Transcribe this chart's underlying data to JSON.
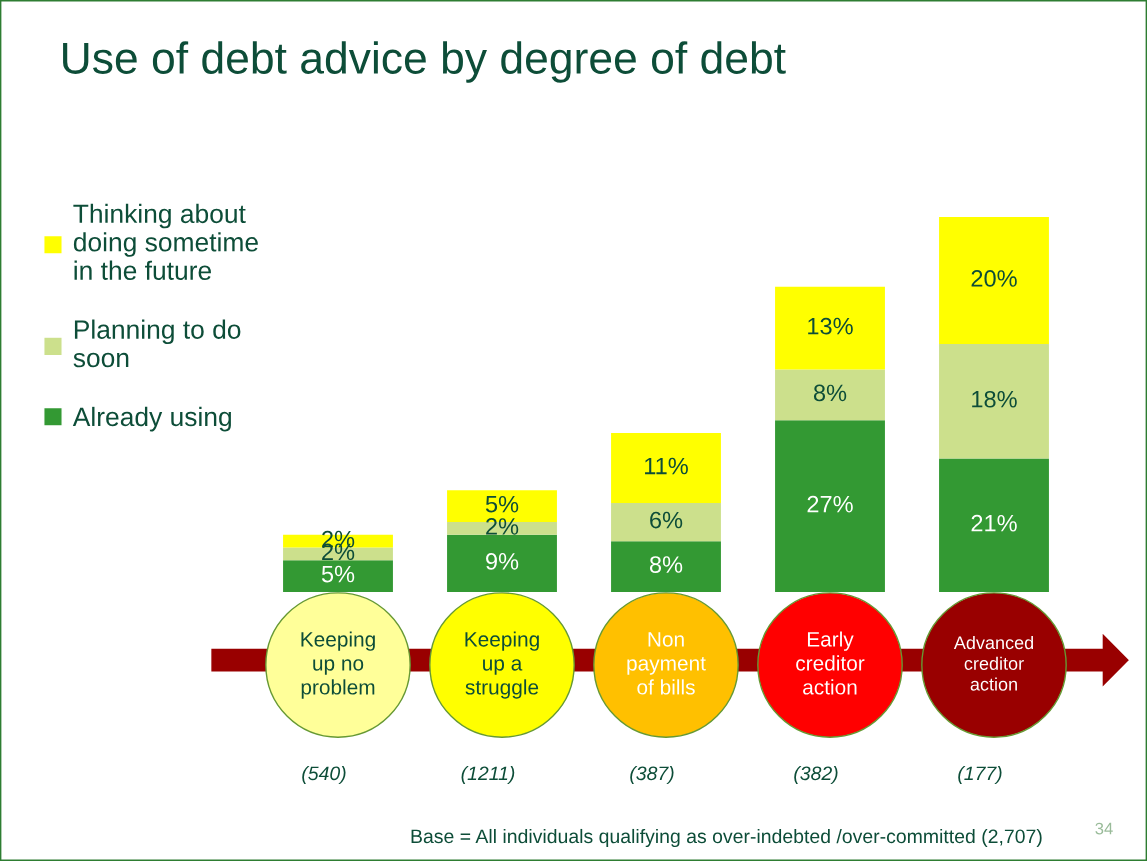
{
  "chart_data": {
    "type": "bar",
    "stacked": true,
    "title": "Use of debt advice by degree of debt",
    "categories": [
      "Keeping\nup no\nproblem",
      "Keeping\nup a\nstruggle",
      "Non\npayment\nof bills",
      "Early\ncreditor\naction",
      "Advanced\ncreditor\naction"
    ],
    "series": [
      {
        "name": "Already using",
        "color": "#339933",
        "values": [
          5,
          9,
          8,
          27,
          21
        ],
        "value_labels": [
          "5%",
          "9%",
          "8%",
          "27%",
          "21%"
        ]
      },
      {
        "name": "Planning to do\nsoon",
        "color": "#cce08c",
        "values": [
          2,
          2,
          6,
          8,
          18
        ],
        "value_labels": [
          "2%",
          "2%",
          "6%",
          "8%",
          "18%"
        ]
      },
      {
        "name": "Thinking about\ndoing sometime\nin the future",
        "color": "#ffff00",
        "values": [
          2,
          5,
          11,
          13,
          20
        ],
        "value_labels": [
          "2%",
          "5%",
          "11%",
          "13%",
          "20%"
        ]
      }
    ],
    "annotations": [
      "(540)",
      "(1211)",
      "(387)",
      "(382)",
      "(177)",
      "Base = All individuals qualifying as over-indebted /over-committed (2,707)",
      "34"
    ],
    "legend": "left"
  }
}
